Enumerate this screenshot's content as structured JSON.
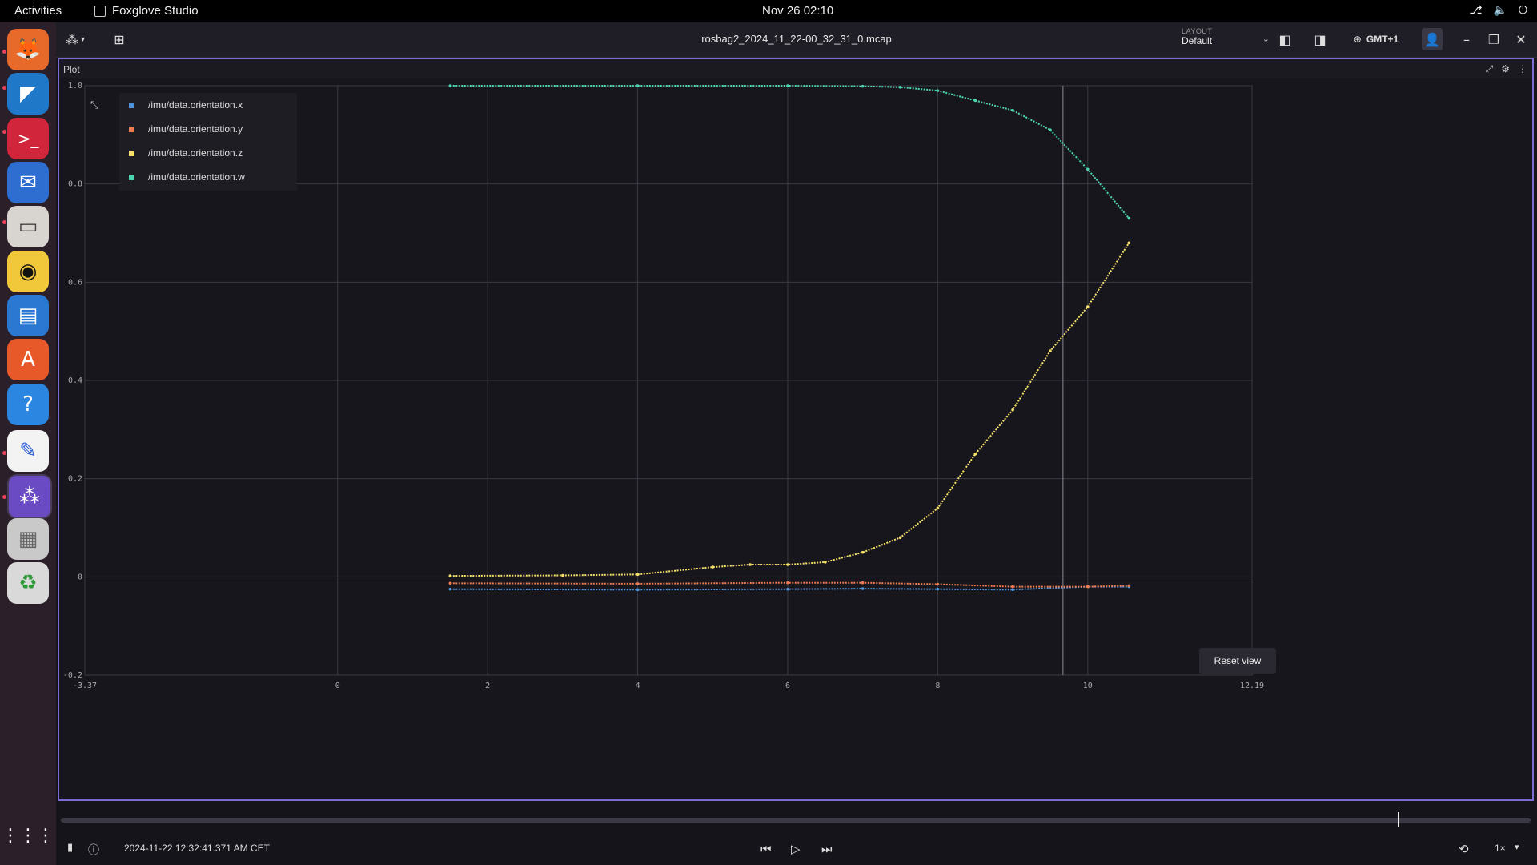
{
  "topbar": {
    "activities": "Activities",
    "app_name": "Foxglove Studio",
    "clock": "Nov 26  02:10"
  },
  "window": {
    "filename": "rosbag2_2024_11_22-00_32_31_0.mcap",
    "layout_label": "LAYOUT",
    "layout_value": "Default",
    "timezone": "GMT+1"
  },
  "panel": {
    "title": "Plot",
    "reset_label": "Reset view"
  },
  "legend": [
    {
      "label": "/imu/data.orientation.x",
      "color": "#4d95e0"
    },
    {
      "label": "/imu/data.orientation.y",
      "color": "#f07b50"
    },
    {
      "label": "/imu/data.orientation.z",
      "color": "#f5e06a"
    },
    {
      "label": "/imu/data.orientation.w",
      "color": "#4fd4b1"
    }
  ],
  "chart_data": {
    "type": "scatter",
    "xlim": [
      -3.37,
      12.19
    ],
    "ylim": [
      -0.2,
      1.0
    ],
    "x_ticks": [
      -3.37,
      0,
      2,
      4,
      6,
      8,
      10,
      12.19
    ],
    "x_tick_labels": [
      "-3.37",
      "0",
      "2",
      "4",
      "6",
      "8",
      "10",
      "12.19"
    ],
    "y_ticks": [
      1.0,
      0.8,
      0.6,
      0.4,
      0.2,
      0,
      -0.2
    ],
    "y_tick_labels": [
      "1.0",
      "0.8",
      "0.6",
      "0.4",
      "0.2",
      "0",
      "-0.2"
    ],
    "grid": true,
    "cursor_x": 9.67,
    "series": [
      {
        "color": "#4d95e0",
        "x": [
          1.5,
          4,
          6,
          7,
          8,
          9,
          10,
          10.55
        ],
        "y": [
          -0.025,
          -0.026,
          -0.025,
          -0.024,
          -0.025,
          -0.026,
          -0.02,
          -0.02
        ]
      },
      {
        "color": "#f07b50",
        "x": [
          1.5,
          4,
          6,
          7,
          8,
          9,
          10,
          10.55
        ],
        "y": [
          -0.013,
          -0.014,
          -0.012,
          -0.012,
          -0.015,
          -0.02,
          -0.02,
          -0.018
        ]
      },
      {
        "color": "#f5e06a",
        "x": [
          1.5,
          3,
          4,
          5,
          5.5,
          6,
          6.5,
          7,
          7.5,
          8,
          8.5,
          9,
          9.5,
          10,
          10.55
        ],
        "y": [
          0.002,
          0.003,
          0.005,
          0.02,
          0.025,
          0.025,
          0.03,
          0.05,
          0.08,
          0.14,
          0.25,
          0.34,
          0.46,
          0.55,
          0.68
        ]
      },
      {
        "color": "#4fd4b1",
        "x": [
          1.5,
          4,
          6,
          7,
          7.5,
          8,
          8.5,
          9,
          9.5,
          10,
          10.55
        ],
        "y": [
          1.0,
          1.0,
          1.0,
          0.999,
          0.997,
          0.99,
          0.97,
          0.95,
          0.91,
          0.83,
          0.73
        ]
      }
    ]
  },
  "playback": {
    "timestamp": "2024-11-22 12:32:41.371 AM CET",
    "speed": "1×"
  }
}
